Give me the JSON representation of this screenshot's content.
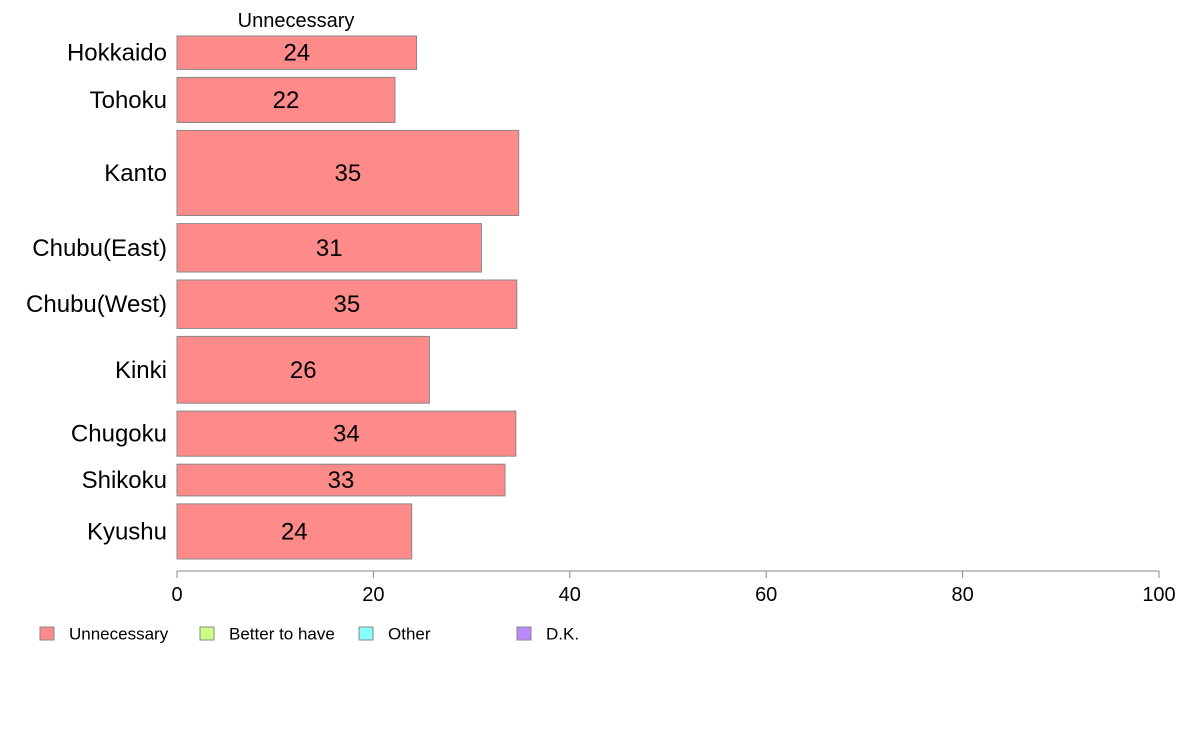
{
  "chart_data": {
    "type": "bar",
    "orientation": "horizontal",
    "title": "Unnecessary",
    "categories": [
      "Hokkaido",
      "Tohoku",
      "Kanto",
      "Chubu(East)",
      "Chubu(West)",
      "Kinki",
      "Chugoku",
      "Shikoku",
      "Kyushu"
    ],
    "series": [
      {
        "name": "Unnecessary",
        "values": [
          24.4,
          22.2,
          34.8,
          31,
          34.6,
          25.7,
          34.5,
          33.4,
          23.9
        ],
        "labels": [
          "24",
          "22",
          "35",
          "31",
          "35",
          "26",
          "34",
          "33",
          "24"
        ]
      }
    ],
    "category_weights": [
      1.0,
      1.35,
      2.55,
      1.45,
      1.45,
      2.0,
      1.35,
      0.95,
      1.65
    ],
    "xlim": [
      0,
      100
    ],
    "xticks": [
      "0",
      "20",
      "40",
      "60",
      "80",
      "100"
    ],
    "xlabel": "",
    "ylabel": "",
    "grid": false,
    "legend": {
      "placement": "bottom",
      "items": [
        {
          "label": "Unnecessary",
          "color": "#ff8a8a"
        },
        {
          "label": "Better to have",
          "color": "#ccff88"
        },
        {
          "label": "Other",
          "color": "#88ffff"
        },
        {
          "label": "D.K.",
          "color": "#bb88ff"
        }
      ]
    },
    "bar_color": "#ff8a8a",
    "bar_stroke": "#888888"
  }
}
